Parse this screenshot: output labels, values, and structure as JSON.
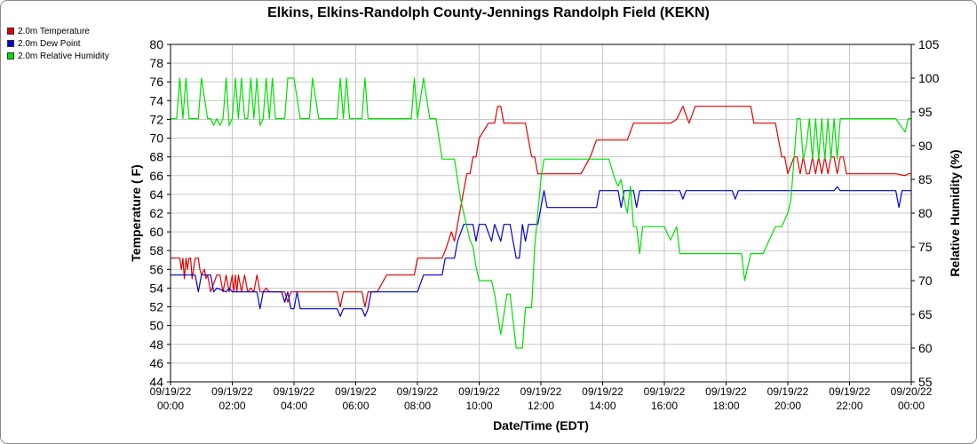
{
  "chart_data": {
    "type": "line",
    "title": "Elkins, Elkins-Randolph County-Jennings Randolph Field (KEKN)",
    "xlabel": "Date/Time (EDT)",
    "ylabel": "Temperature ( F)",
    "y2label": "Relative Humidity (%)",
    "ylim": [
      44,
      80
    ],
    "y2lim": [
      55,
      105
    ],
    "xlim": [
      0,
      24
    ],
    "yticks": [
      44,
      46,
      48,
      50,
      52,
      54,
      56,
      58,
      60,
      62,
      64,
      66,
      68,
      70,
      72,
      74,
      76,
      78,
      80
    ],
    "y2ticks": [
      55,
      60,
      65,
      70,
      75,
      80,
      85,
      90,
      95,
      100,
      105
    ],
    "xticks": [
      {
        "x": 0,
        "date": "09/19/22",
        "time": "00:00"
      },
      {
        "x": 2,
        "date": "09/19/22",
        "time": "02:00"
      },
      {
        "x": 4,
        "date": "09/19/22",
        "time": "04:00"
      },
      {
        "x": 6,
        "date": "09/19/22",
        "time": "06:00"
      },
      {
        "x": 8,
        "date": "09/19/22",
        "time": "08:00"
      },
      {
        "x": 10,
        "date": "09/19/22",
        "time": "10:00"
      },
      {
        "x": 12,
        "date": "09/19/22",
        "time": "12:00"
      },
      {
        "x": 14,
        "date": "09/19/22",
        "time": "14:00"
      },
      {
        "x": 16,
        "date": "09/19/22",
        "time": "16:00"
      },
      {
        "x": 18,
        "date": "09/19/22",
        "time": "18:00"
      },
      {
        "x": 20,
        "date": "09/19/22",
        "time": "20:00"
      },
      {
        "x": 22,
        "date": "09/19/22",
        "time": "22:00"
      },
      {
        "x": 24,
        "date": "09/20/22",
        "time": "00:00"
      }
    ],
    "grid": true,
    "legend_position": "top-left",
    "series": [
      {
        "name": "2.0m Temperature",
        "color": "#e00000",
        "axis": "left",
        "x": [
          0,
          0.3,
          0.35,
          0.4,
          0.45,
          0.5,
          0.55,
          0.6,
          0.65,
          0.7,
          0.8,
          0.85,
          0.9,
          0.95,
          1.0,
          1.1,
          1.15,
          1.2,
          1.3,
          1.5,
          1.6,
          1.7,
          1.8,
          1.9,
          2.0,
          2.05,
          2.1,
          2.15,
          2.2,
          2.3,
          2.4,
          2.5,
          2.6,
          2.7,
          2.8,
          2.9,
          3.0,
          3.1,
          3.2,
          3.3,
          3.4,
          3.5,
          3.6,
          3.7,
          3.8,
          3.9,
          4.0,
          4.3,
          4.6,
          5.0,
          5.2,
          5.4,
          5.5,
          5.6,
          5.7,
          5.8,
          6.0,
          6.2,
          6.3,
          6.4,
          6.5,
          6.6,
          6.7,
          7.0,
          7.5,
          7.9,
          8.0,
          8.5,
          8.8,
          8.9,
          9.0,
          9.1,
          9.2,
          9.3,
          9.4,
          9.5,
          9.6,
          9.7,
          9.8,
          9.9,
          10.0,
          10.3,
          10.4,
          10.5,
          10.6,
          10.7,
          10.8,
          10.9,
          11.0,
          11.2,
          11.5,
          11.7,
          11.8,
          11.9,
          12.0,
          12.2,
          12.5,
          13.0,
          13.3,
          13.6,
          13.8,
          13.9,
          14.0,
          14.5,
          14.8,
          15.0,
          15.3,
          15.6,
          16.0,
          16.2,
          16.4,
          16.6,
          16.8,
          17.0,
          17.5,
          18.0,
          18.3,
          18.6,
          18.8,
          18.9,
          19.0,
          19.3,
          19.6,
          19.8,
          19.9,
          20.0,
          20.2,
          20.3,
          20.4,
          20.5,
          20.6,
          20.7,
          20.8,
          20.9,
          21.0,
          21.1,
          21.2,
          21.3,
          21.4,
          21.5,
          21.6,
          21.7,
          21.8,
          21.9,
          22.0,
          22.5,
          23.0,
          23.5,
          23.8,
          23.9,
          24.0
        ],
        "values": [
          57.2,
          57.2,
          56.0,
          57.2,
          55.0,
          57.2,
          56.0,
          57.2,
          57.2,
          55.0,
          57.2,
          57.2,
          57.2,
          56.0,
          55.4,
          56.0,
          55.0,
          55.4,
          53.6,
          55.4,
          55.4,
          53.6,
          55.4,
          53.6,
          55.4,
          53.6,
          55.4,
          53.6,
          55.4,
          53.6,
          55.4,
          53.6,
          54.0,
          53.6,
          55.4,
          53.6,
          53.6,
          54.0,
          53.6,
          53.6,
          53.6,
          53.6,
          53.6,
          53.6,
          52.5,
          53.6,
          53.6,
          53.6,
          53.6,
          53.6,
          53.6,
          53.6,
          52.0,
          53.6,
          53.6,
          53.6,
          53.6,
          53.6,
          52.0,
          53.6,
          53.6,
          53.6,
          53.6,
          55.4,
          55.4,
          55.4,
          57.2,
          57.2,
          57.2,
          58.0,
          59.0,
          60.0,
          59.0,
          60.8,
          62.6,
          64.4,
          66.2,
          66.2,
          68.0,
          68.0,
          70.0,
          71.6,
          71.6,
          71.6,
          73.4,
          73.4,
          71.6,
          71.6,
          71.6,
          71.6,
          71.6,
          68.0,
          68.0,
          66.2,
          66.2,
          66.2,
          66.2,
          66.2,
          66.2,
          68.0,
          69.8,
          69.8,
          69.8,
          69.8,
          69.8,
          71.6,
          71.6,
          71.6,
          71.6,
          71.6,
          72.0,
          73.4,
          71.6,
          73.4,
          73.4,
          73.4,
          73.4,
          73.4,
          73.4,
          71.6,
          71.6,
          71.6,
          71.6,
          68.0,
          68.0,
          66.2,
          68.0,
          68.0,
          66.2,
          68.0,
          66.2,
          66.2,
          68.0,
          66.2,
          68.0,
          66.2,
          68.0,
          66.2,
          68.0,
          68.0,
          66.2,
          68.0,
          68.0,
          66.2,
          66.2,
          66.2,
          66.2,
          66.2,
          66.0,
          66.2,
          66.2
        ]
      },
      {
        "name": "2.0m Dew Point",
        "color": "#0000d0",
        "axis": "left",
        "x": [
          0,
          0.5,
          0.8,
          0.9,
          1.0,
          1.2,
          1.3,
          1.4,
          1.5,
          1.8,
          1.9,
          2.0,
          2.5,
          2.8,
          2.9,
          3.0,
          3.5,
          3.6,
          3.7,
          3.8,
          3.9,
          4.0,
          4.1,
          4.2,
          4.3,
          4.5,
          4.8,
          5.0,
          5.4,
          5.5,
          5.6,
          5.8,
          6.0,
          6.2,
          6.3,
          6.4,
          6.5,
          7.0,
          7.5,
          7.9,
          8.0,
          8.2,
          8.4,
          8.6,
          8.8,
          8.9,
          9.0,
          9.1,
          9.2,
          9.3,
          9.5,
          9.6,
          9.8,
          9.9,
          10.0,
          10.2,
          10.4,
          10.5,
          10.7,
          10.8,
          11.0,
          11.1,
          11.2,
          11.3,
          11.4,
          11.5,
          11.6,
          11.8,
          11.9,
          12.0,
          12.1,
          12.2,
          12.3,
          12.4,
          12.6,
          13.0,
          13.5,
          13.8,
          13.9,
          14.0,
          14.5,
          14.6,
          14.7,
          14.8,
          15.0,
          15.1,
          15.2,
          15.3,
          15.5,
          16.0,
          16.5,
          16.6,
          16.7,
          17.0,
          17.5,
          18.0,
          18.2,
          18.3,
          18.4,
          19.0,
          20.0,
          20.5,
          21.0,
          21.5,
          21.6,
          21.7,
          22.0,
          22.5,
          23.0,
          23.5,
          23.6,
          23.7,
          23.8,
          24.0
        ],
        "values": [
          55.4,
          55.4,
          55.4,
          53.6,
          55.4,
          55.4,
          55.4,
          53.6,
          54.0,
          53.6,
          54.0,
          53.6,
          53.6,
          53.6,
          51.8,
          53.6,
          53.6,
          53.6,
          52.5,
          53.6,
          51.8,
          51.8,
          53.6,
          51.8,
          51.8,
          51.8,
          51.8,
          51.8,
          51.8,
          51.0,
          51.8,
          51.8,
          51.8,
          51.8,
          51.0,
          51.8,
          53.6,
          53.6,
          53.6,
          53.6,
          53.6,
          55.4,
          55.4,
          55.4,
          55.4,
          57.2,
          57.2,
          57.2,
          57.2,
          59.0,
          60.8,
          60.8,
          60.8,
          59.0,
          60.8,
          60.8,
          59.0,
          60.8,
          59.0,
          60.8,
          60.8,
          59.0,
          57.2,
          57.2,
          60.8,
          59.0,
          60.8,
          60.8,
          60.8,
          62.6,
          64.4,
          62.6,
          62.6,
          62.6,
          62.6,
          62.6,
          62.6,
          62.6,
          64.4,
          64.4,
          64.4,
          62.6,
          64.4,
          64.4,
          64.4,
          62.6,
          64.4,
          64.4,
          64.4,
          64.4,
          64.4,
          63.5,
          64.4,
          64.4,
          64.4,
          64.4,
          64.4,
          63.5,
          64.4,
          64.4,
          64.4,
          64.4,
          64.4,
          64.4,
          64.8,
          64.4,
          64.4,
          64.4,
          64.4,
          64.4,
          62.6,
          64.4,
          64.4,
          64.4
        ]
      },
      {
        "name": "2.0m Relative Humidity",
        "color": "#00e000",
        "axis": "right",
        "x": [
          0,
          0.2,
          0.3,
          0.4,
          0.5,
          0.6,
          0.7,
          0.8,
          0.9,
          1.0,
          1.2,
          1.3,
          1.4,
          1.5,
          1.6,
          1.7,
          1.8,
          1.9,
          2.0,
          2.1,
          2.2,
          2.3,
          2.4,
          2.5,
          2.6,
          2.7,
          2.8,
          2.9,
          3.0,
          3.1,
          3.2,
          3.3,
          3.4,
          3.5,
          3.6,
          3.7,
          3.8,
          4.0,
          4.2,
          4.4,
          4.5,
          4.6,
          4.8,
          5.0,
          5.2,
          5.4,
          5.5,
          5.6,
          5.7,
          5.8,
          6.0,
          6.2,
          6.3,
          6.4,
          6.5,
          7.0,
          7.5,
          7.8,
          7.9,
          8.0,
          8.2,
          8.4,
          8.5,
          8.6,
          8.8,
          9.0,
          9.2,
          9.4,
          9.5,
          9.6,
          9.7,
          9.8,
          9.9,
          10.0,
          10.2,
          10.4,
          10.5,
          10.6,
          10.7,
          10.8,
          10.9,
          11.0,
          11.2,
          11.4,
          11.5,
          11.6,
          11.7,
          11.8,
          11.9,
          12.0,
          12.1,
          12.2,
          12.3,
          12.4,
          12.5,
          12.6,
          12.7,
          12.8,
          13.0,
          13.5,
          13.8,
          13.9,
          14.0,
          14.2,
          14.4,
          14.5,
          14.6,
          14.7,
          14.8,
          14.9,
          15.0,
          15.1,
          15.2,
          15.3,
          15.4,
          15.5,
          15.6,
          15.8,
          16.0,
          16.2,
          16.4,
          16.5,
          16.6,
          17.0,
          17.5,
          18.0,
          18.5,
          18.6,
          18.8,
          19.0,
          19.2,
          19.4,
          19.6,
          19.8,
          20.0,
          20.1,
          20.2,
          20.3,
          20.4,
          20.5,
          20.6,
          20.7,
          20.8,
          20.9,
          21.0,
          21.1,
          21.2,
          21.3,
          21.4,
          21.5,
          21.6,
          21.7,
          21.8,
          21.9,
          22.0,
          22.5,
          23.0,
          23.5,
          23.8,
          23.9,
          24.0
        ],
        "values": [
          94,
          94,
          100,
          94,
          100,
          94,
          94,
          94,
          94,
          100,
          94,
          94,
          93,
          94,
          93,
          94,
          100,
          93,
          94,
          100,
          94,
          100,
          94,
          94,
          100,
          94,
          100,
          93,
          94,
          100,
          94,
          100,
          94,
          94,
          94,
          94,
          100,
          100,
          94,
          94,
          94,
          100,
          94,
          94,
          94,
          94,
          100,
          94,
          100,
          94,
          94,
          94,
          100,
          94,
          94,
          94,
          94,
          94,
          100,
          94,
          100,
          94,
          94,
          94,
          88,
          88,
          88,
          82,
          80,
          78,
          76,
          75,
          72,
          70,
          70,
          70,
          68,
          65,
          62,
          65,
          68,
          68,
          60,
          60,
          66,
          66,
          66,
          75,
          80,
          85,
          88,
          88,
          88,
          88,
          88,
          88,
          88,
          88,
          88,
          88,
          88,
          88,
          88,
          88,
          85,
          84,
          85,
          82,
          80,
          84,
          78,
          78,
          74,
          78,
          78,
          78,
          78,
          78,
          78,
          76,
          78,
          74,
          74,
          74,
          74,
          74,
          74,
          70,
          74,
          74,
          74,
          76,
          78,
          78,
          80,
          82,
          88,
          94,
          94,
          88,
          90,
          94,
          88,
          94,
          88,
          94,
          88,
          94,
          88,
          94,
          88,
          94,
          94,
          94,
          94,
          94,
          94,
          94,
          92,
          94,
          94
        ]
      }
    ]
  }
}
